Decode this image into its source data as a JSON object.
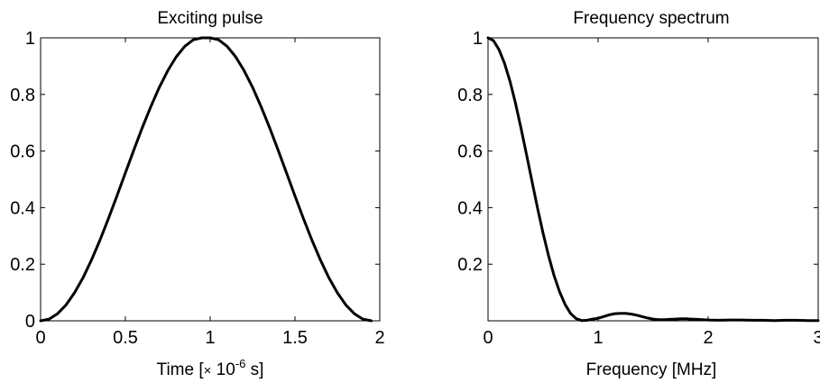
{
  "chart_data": [
    {
      "type": "line",
      "title": "Exciting pulse",
      "xlabel": "Time [× 10⁻⁶ s]",
      "xlabel_parts": {
        "pre": "Time [",
        "times": "×",
        "base": " 10",
        "exp": "-6",
        "post": " s]"
      },
      "ylabel": "",
      "xlim": [
        0,
        2
      ],
      "ylim": [
        0,
        1
      ],
      "xticks": [
        0,
        0.5,
        1,
        1.5,
        2
      ],
      "xtick_labels": [
        "0",
        "0.5",
        "1",
        "1.5",
        "2"
      ],
      "yticks": [
        0,
        0.2,
        0.4,
        0.6,
        0.8,
        1
      ],
      "ytick_labels": [
        "0",
        "0.2",
        "0.4",
        "0.6",
        "0.8",
        "1"
      ],
      "grid": false,
      "series": [
        {
          "x": [
            0,
            0.05,
            0.1,
            0.15,
            0.2,
            0.25,
            0.3,
            0.35,
            0.4,
            0.45,
            0.5,
            0.55,
            0.6,
            0.65,
            0.7,
            0.75,
            0.8,
            0.85,
            0.9,
            0.95,
            1.0,
            1.05,
            1.1,
            1.15,
            1.2,
            1.25,
            1.3,
            1.35,
            1.4,
            1.45,
            1.5,
            1.55,
            1.6,
            1.65,
            1.7,
            1.75,
            1.8,
            1.85,
            1.9,
            1.95
          ],
          "y": [
            0,
            0.006,
            0.025,
            0.056,
            0.099,
            0.152,
            0.215,
            0.285,
            0.361,
            0.441,
            0.523,
            0.604,
            0.683,
            0.757,
            0.825,
            0.884,
            0.933,
            0.97,
            0.993,
            1.0,
            1.0,
            0.993,
            0.97,
            0.933,
            0.884,
            0.825,
            0.757,
            0.683,
            0.604,
            0.523,
            0.441,
            0.361,
            0.285,
            0.215,
            0.152,
            0.099,
            0.056,
            0.025,
            0.006,
            0
          ]
        }
      ]
    },
    {
      "type": "line",
      "title": "Frequency spectrum",
      "xlabel": "Frequency [MHz]",
      "ylabel": "",
      "xlim": [
        0,
        3
      ],
      "ylim": [
        0,
        1
      ],
      "xticks": [
        0,
        1,
        2,
        3
      ],
      "xtick_labels": [
        "0",
        "1",
        "2",
        "3"
      ],
      "yticks": [
        0.2,
        0.4,
        0.6,
        0.8,
        1
      ],
      "ytick_labels": [
        "0.2",
        "0.4",
        "0.6",
        "0.8",
        "1"
      ],
      "grid": false,
      "series": [
        {
          "x": [
            0,
            0.05,
            0.1,
            0.15,
            0.2,
            0.25,
            0.3,
            0.35,
            0.4,
            0.45,
            0.5,
            0.55,
            0.6,
            0.65,
            0.7,
            0.75,
            0.8,
            0.85,
            0.9,
            0.95,
            1.0,
            1.05,
            1.1,
            1.15,
            1.2,
            1.25,
            1.3,
            1.35,
            1.4,
            1.45,
            1.5,
            1.55,
            1.6,
            1.65,
            1.7,
            1.75,
            1.8,
            1.85,
            1.9,
            1.95,
            2.0,
            2.1,
            2.2,
            2.3,
            2.4,
            2.5,
            2.6,
            2.7,
            2.8,
            2.9,
            3.0
          ],
          "y": [
            1.0,
            0.99,
            0.958,
            0.91,
            0.846,
            0.768,
            0.68,
            0.587,
            0.492,
            0.398,
            0.31,
            0.23,
            0.16,
            0.103,
            0.058,
            0.026,
            0.008,
            0.001,
            0.002,
            0.006,
            0.009,
            0.015,
            0.021,
            0.025,
            0.026,
            0.026,
            0.024,
            0.02,
            0.015,
            0.01,
            0.006,
            0.004,
            0.004,
            0.005,
            0.006,
            0.007,
            0.007,
            0.006,
            0.005,
            0.004,
            0.003,
            0.002,
            0.003,
            0.003,
            0.002,
            0.002,
            0.001,
            0.002,
            0.002,
            0.001,
            0.001
          ]
        }
      ]
    }
  ]
}
